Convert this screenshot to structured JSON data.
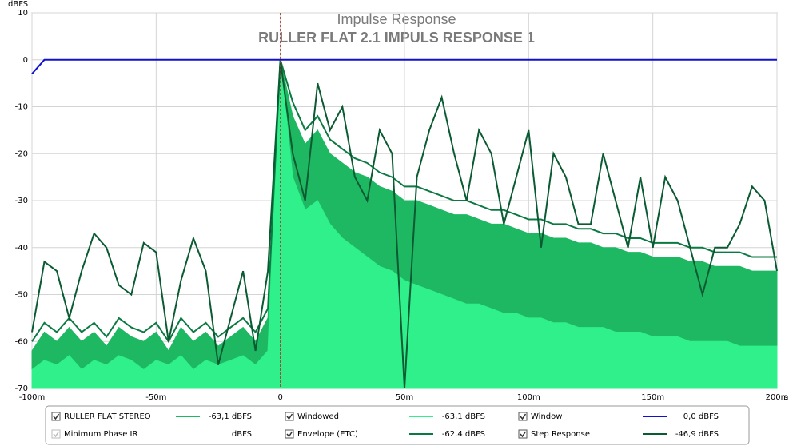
{
  "chart_data": {
    "type": "line",
    "title": "Impulse Response",
    "subtitle": "RULLER FLAT 2.1 IMPULS RESPONSE 1",
    "y_label": "dBFS",
    "x_label": "s",
    "xlim": [
      -100,
      200
    ],
    "ylim": [
      -70,
      10
    ],
    "xticks": [
      {
        "value": -100,
        "label": "-100m"
      },
      {
        "value": -50,
        "label": "-50m"
      },
      0,
      {
        "value": 50,
        "label": "50m"
      },
      {
        "value": 100,
        "label": "100m"
      },
      {
        "value": 150,
        "label": "150m"
      },
      {
        "value": 200,
        "label": "200m"
      }
    ],
    "yticks": [
      10,
      0,
      -10,
      -20,
      -30,
      -40,
      -50,
      -60,
      -70
    ],
    "grid": true,
    "x": [
      -100,
      -95,
      -90,
      -85,
      -80,
      -75,
      -70,
      -65,
      -60,
      -55,
      -50,
      -45,
      -40,
      -35,
      -30,
      -25,
      -20,
      -15,
      -10,
      -5,
      0,
      5,
      10,
      15,
      20,
      25,
      30,
      35,
      40,
      45,
      50,
      55,
      60,
      65,
      70,
      75,
      80,
      85,
      90,
      95,
      100,
      105,
      110,
      115,
      120,
      125,
      130,
      135,
      140,
      145,
      150,
      155,
      160,
      165,
      170,
      175,
      180,
      185,
      190,
      195,
      200
    ],
    "series": [
      {
        "name": "RULLER FLAT STEREO",
        "color": "#1fb862",
        "style": "area",
        "checked": true,
        "readout": "-63,1 dBFS",
        "values": [
          -62,
          -58,
          -60,
          -57,
          -60,
          -58,
          -61,
          -57,
          -59,
          -60,
          -58,
          -62,
          -57,
          -60,
          -58,
          -61,
          -59,
          -57,
          -60,
          -55,
          0,
          -12,
          -18,
          -15,
          -20,
          -22,
          -24,
          -25,
          -27,
          -28,
          -30,
          -30,
          -31,
          -32,
          -33,
          -33,
          -34,
          -35,
          -35,
          -36,
          -37,
          -37,
          -38,
          -38,
          -39,
          -39,
          -40,
          -40,
          -41,
          -41,
          -42,
          -42,
          -42,
          -43,
          -43,
          -44,
          -44,
          -44,
          -45,
          -45,
          -45
        ]
      },
      {
        "name": "Minimum Phase IR",
        "enabled": false,
        "checked": true,
        "readout": "dBFS"
      },
      {
        "name": "Windowed",
        "color": "#2ff08a",
        "style": "area",
        "checked": true,
        "readout": "-63,1 dBFS",
        "values": [
          -66,
          -64,
          -65,
          -63,
          -66,
          -64,
          -65,
          -63,
          -64,
          -66,
          -64,
          -65,
          -63,
          -66,
          -64,
          -65,
          -64,
          -63,
          -65,
          -62,
          0,
          -25,
          -32,
          -30,
          -35,
          -38,
          -40,
          -42,
          -44,
          -45,
          -47,
          -48,
          -49,
          -50,
          -51,
          -52,
          -52,
          -53,
          -54,
          -54,
          -55,
          -55,
          -56,
          -56,
          -57,
          -57,
          -57,
          -58,
          -58,
          -58,
          -59,
          -59,
          -59,
          -60,
          -60,
          -60,
          -60,
          -61,
          -61,
          -61,
          -61
        ]
      },
      {
        "name": "Envelope (ETC)",
        "color": "#0b7a42",
        "style": "line",
        "checked": true,
        "readout": "-62,4 dBFS",
        "values": [
          -60,
          -56,
          -58,
          -55,
          -58,
          -56,
          -59,
          -55,
          -57,
          -58,
          -56,
          -60,
          -55,
          -58,
          -56,
          -59,
          -57,
          -55,
          -58,
          -53,
          0,
          -9,
          -15,
          -12,
          -17,
          -19,
          -21,
          -22,
          -24,
          -25,
          -27,
          -27,
          -28,
          -29,
          -30,
          -30,
          -31,
          -32,
          -32,
          -33,
          -34,
          -34,
          -35,
          -35,
          -36,
          -36,
          -37,
          -37,
          -38,
          -38,
          -39,
          -39,
          -39,
          -40,
          -40,
          -41,
          -41,
          -41,
          -42,
          -42,
          -42
        ]
      },
      {
        "name": "Window",
        "color": "#1010d0",
        "style": "line",
        "checked": true,
        "readout": "0,0 dBFS",
        "values": [
          -3,
          0,
          0,
          0,
          0,
          0,
          0,
          0,
          0,
          0,
          0,
          0,
          0,
          0,
          0,
          0,
          0,
          0,
          0,
          0,
          0,
          0,
          0,
          0,
          0,
          0,
          0,
          0,
          0,
          0,
          0,
          0,
          0,
          0,
          0,
          0,
          0,
          0,
          0,
          0,
          0,
          0,
          0,
          0,
          0,
          0,
          0,
          0,
          0,
          0,
          0,
          0,
          0,
          0,
          0,
          0,
          0,
          0,
          0,
          0,
          0
        ]
      },
      {
        "name": "Step Response",
        "color": "#0a5a32",
        "style": "line",
        "checked": true,
        "readout": "-46,9 dBFS",
        "values": [
          -58,
          -43,
          -45,
          -55,
          -45,
          -37,
          -40,
          -48,
          -50,
          -39,
          -41,
          -60,
          -47,
          -38,
          -45,
          -65,
          -55,
          -45,
          -62,
          -45,
          0,
          -20,
          -30,
          -5,
          -15,
          -10,
          -25,
          -30,
          -15,
          -20,
          -70,
          -25,
          -15,
          -8,
          -20,
          -30,
          -15,
          -20,
          -35,
          -25,
          -15,
          -40,
          -20,
          -25,
          -35,
          -35,
          -20,
          -30,
          -40,
          -25,
          -40,
          -25,
          -30,
          -40,
          -50,
          -40,
          -40,
          -35,
          -27,
          -30,
          -45
        ]
      }
    ]
  }
}
